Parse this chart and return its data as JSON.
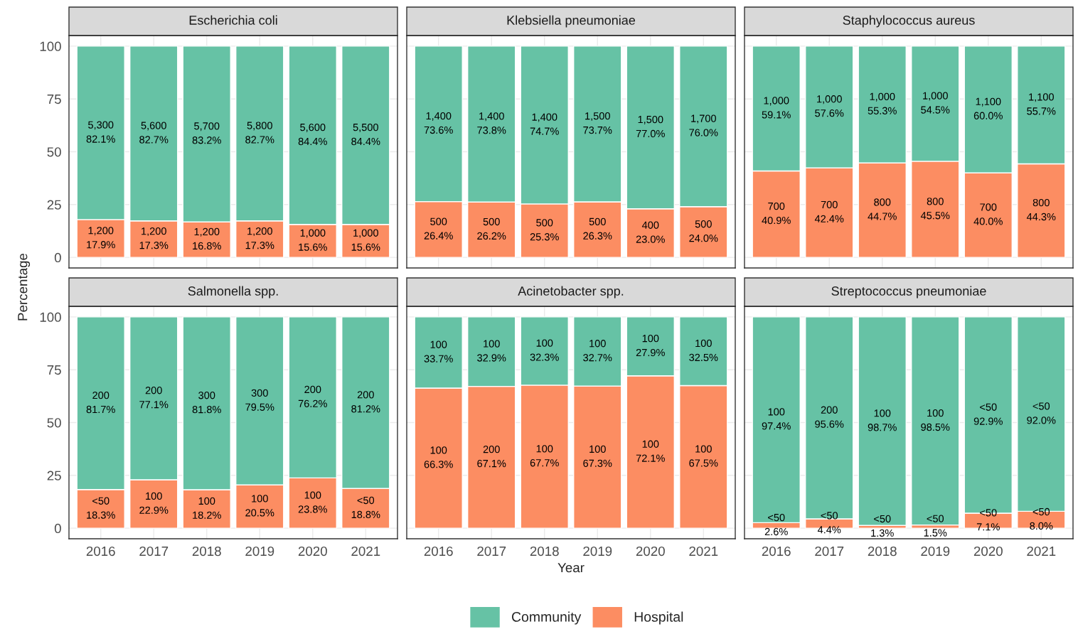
{
  "chart_data": [
    {
      "type": "bar",
      "stacked": true,
      "title": "Escherichia coli",
      "ylabel": "Percentage",
      "legend": "bottom",
      "grid": true,
      "tick_labels": "y",
      "categories": [
        "2016",
        "2017",
        "2018",
        "2019",
        "2020",
        "2021"
      ],
      "ylim": [
        -5,
        105
      ],
      "yticks": [
        0,
        25,
        50,
        75,
        100
      ],
      "series": [
        {
          "name": "Hospital",
          "color": "#fc8d62",
          "values": [
            17.9,
            17.3,
            16.8,
            17.3,
            15.6,
            15.6
          ],
          "value_labels": [
            "1,200\n17.9%",
            "1,200\n17.3%",
            "1,200\n16.8%",
            "1,200\n17.3%",
            "1,000\n15.6%",
            "1,000\n15.6%"
          ]
        },
        {
          "name": "Community",
          "color": "#66c2a5",
          "values": [
            82.1,
            82.7,
            83.2,
            82.7,
            84.4,
            84.4
          ],
          "value_labels": [
            "5,300\n82.1%",
            "5,600\n82.7%",
            "5,700\n83.2%",
            "5,800\n82.7%",
            "5,600\n84.4%",
            "5,500\n84.4%"
          ]
        }
      ]
    },
    {
      "type": "bar",
      "stacked": true,
      "title": "Klebsiella pneumoniae",
      "grid": true,
      "tick_labels": false,
      "categories": [
        "2016",
        "2017",
        "2018",
        "2019",
        "2020",
        "2021"
      ],
      "ylim": [
        -5,
        105
      ],
      "yticks": [
        0,
        25,
        50,
        75,
        100
      ],
      "series": [
        {
          "color": "#fc8d62",
          "values": [
            26.4,
            26.2,
            25.3,
            26.3,
            23.0,
            24.0
          ],
          "value_labels": [
            "500\n26.4%",
            "500\n26.2%",
            "500\n25.3%",
            "500\n26.3%",
            "400\n23.0%",
            "500\n24.0%"
          ]
        },
        {
          "color": "#66c2a5",
          "values": [
            73.6,
            73.8,
            74.7,
            73.7,
            77.0,
            76.0
          ],
          "value_labels": [
            "1,400\n73.6%",
            "1,400\n73.8%",
            "1,400\n74.7%",
            "1,500\n73.7%",
            "1,500\n77.0%",
            "1,700\n76.0%"
          ]
        }
      ]
    },
    {
      "type": "bar",
      "stacked": true,
      "title": "Staphylococcus aureus",
      "grid": true,
      "tick_labels": false,
      "categories": [
        "2016",
        "2017",
        "2018",
        "2019",
        "2020",
        "2021"
      ],
      "ylim": [
        -5,
        105
      ],
      "yticks": [
        0,
        25,
        50,
        75,
        100
      ],
      "series": [
        {
          "color": "#fc8d62",
          "values": [
            40.9,
            42.4,
            44.7,
            45.5,
            40.0,
            44.3
          ],
          "value_labels": [
            "700\n40.9%",
            "700\n42.4%",
            "800\n44.7%",
            "800\n45.5%",
            "700\n40.0%",
            "800\n44.3%"
          ]
        },
        {
          "color": "#66c2a5",
          "values": [
            59.1,
            57.6,
            55.3,
            54.5,
            60.0,
            55.7
          ],
          "value_labels": [
            "1,000\n59.1%",
            "1,000\n57.6%",
            "1,000\n55.3%",
            "1,000\n54.5%",
            "1,100\n60.0%",
            "1,100\n55.7%"
          ]
        }
      ]
    },
    {
      "type": "bar",
      "stacked": true,
      "title": "Salmonella spp.",
      "grid": true,
      "categories": [
        "2016",
        "2017",
        "2018",
        "2019",
        "2020",
        "2021"
      ],
      "ylim": [
        -5,
        105
      ],
      "yticks": [
        0,
        25,
        50,
        75,
        100
      ],
      "series": [
        {
          "color": "#fc8d62",
          "values": [
            18.3,
            22.9,
            18.2,
            20.5,
            23.8,
            18.8
          ],
          "value_labels": [
            "<50\n18.3%",
            "100\n22.9%",
            "100\n18.2%",
            "100\n20.5%",
            "100\n23.8%",
            "<50\n18.8%"
          ]
        },
        {
          "color": "#66c2a5",
          "values": [
            81.7,
            77.1,
            81.8,
            79.5,
            76.2,
            81.2
          ],
          "value_labels": [
            "200\n81.7%",
            "200\n77.1%",
            "300\n81.8%",
            "300\n79.5%",
            "200\n76.2%",
            "200\n81.2%"
          ]
        }
      ]
    },
    {
      "type": "bar",
      "stacked": true,
      "title": "Acinetobacter spp.",
      "xlabel": "Year",
      "grid": true,
      "tick_labels": "x",
      "categories": [
        "2016",
        "2017",
        "2018",
        "2019",
        "2020",
        "2021"
      ],
      "ylim": [
        -5,
        105
      ],
      "yticks": [
        0,
        25,
        50,
        75,
        100
      ],
      "series": [
        {
          "color": "#fc8d62",
          "values": [
            66.3,
            67.1,
            67.7,
            67.3,
            72.1,
            67.5
          ],
          "value_labels": [
            "100\n66.3%",
            "200\n67.1%",
            "100\n67.7%",
            "100\n67.3%",
            "100\n72.1%",
            "100\n67.5%"
          ]
        },
        {
          "color": "#66c2a5",
          "values": [
            33.7,
            32.9,
            32.3,
            32.7,
            27.9,
            32.5
          ],
          "value_labels": [
            "100\n33.7%",
            "100\n32.9%",
            "100\n32.3%",
            "100\n32.7%",
            "100\n27.9%",
            "100\n32.5%"
          ]
        }
      ]
    },
    {
      "type": "bar",
      "stacked": true,
      "title": "Streptococcus pneumoniae",
      "grid": true,
      "tick_labels": "x",
      "categories": [
        "2016",
        "2017",
        "2018",
        "2019",
        "2020",
        "2021"
      ],
      "ylim": [
        -5,
        105
      ],
      "yticks": [
        0,
        25,
        50,
        75,
        100
      ],
      "series": [
        {
          "color": "#fc8d62",
          "values": [
            2.6,
            4.4,
            1.3,
            1.5,
            7.1,
            8.0
          ],
          "value_labels": [
            "<50\n2.6%",
            "<50\n4.4%",
            "<50\n1.3%",
            "<50\n1.5%",
            "<50\n7.1%",
            "<50\n8.0%"
          ]
        },
        {
          "color": "#66c2a5",
          "values": [
            97.4,
            95.6,
            98.7,
            98.5,
            92.9,
            92.0
          ],
          "value_labels": [
            "100\n97.4%",
            "200\n95.6%",
            "100\n98.7%",
            "100\n98.5%",
            "<50\n92.9%",
            "<50\n92.0%"
          ]
        }
      ]
    }
  ]
}
